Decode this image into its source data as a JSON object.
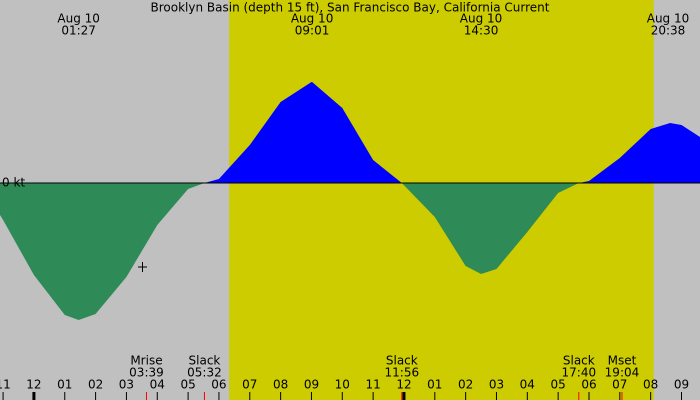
{
  "chart_data": {
    "type": "area",
    "title": "Brooklyn Basin (depth 15 ft), San Francisco Bay, California Current",
    "xlim": [
      -1.1,
      21.6
    ],
    "ylim": [
      -1.83,
      1.83
    ],
    "yticks": [
      {
        "value": 0,
        "label": "0 kt"
      }
    ],
    "xticks": [
      {
        "value": -1,
        "label": "11"
      },
      {
        "value": 0,
        "label": "12"
      },
      {
        "value": 1,
        "label": "01"
      },
      {
        "value": 2,
        "label": "02"
      },
      {
        "value": 3,
        "label": "03"
      },
      {
        "value": 4,
        "label": "04"
      },
      {
        "value": 5,
        "label": "05"
      },
      {
        "value": 6,
        "label": "06"
      },
      {
        "value": 7,
        "label": "07"
      },
      {
        "value": 8,
        "label": "08"
      },
      {
        "value": 9,
        "label": "09"
      },
      {
        "value": 10,
        "label": "10"
      },
      {
        "value": 11,
        "label": "11"
      },
      {
        "value": 12,
        "label": "12"
      },
      {
        "value": 13,
        "label": "01"
      },
      {
        "value": 14,
        "label": "02"
      },
      {
        "value": 15,
        "label": "03"
      },
      {
        "value": 16,
        "label": "04"
      },
      {
        "value": 17,
        "label": "05"
      },
      {
        "value": 18,
        "label": "06"
      },
      {
        "value": 19,
        "label": "07"
      },
      {
        "value": 20,
        "label": "08"
      },
      {
        "value": 21,
        "label": "09"
      }
    ],
    "x": [
      -1.1,
      -1,
      0,
      1,
      1.45,
      2,
      3,
      4,
      5,
      5.53,
      6,
      7,
      8,
      9,
      9.02,
      10,
      11,
      11.93,
      13,
      14,
      14.5,
      15,
      16,
      17,
      17.67,
      18,
      19,
      20,
      20.63,
      21,
      21.6
    ],
    "values": [
      -0.32,
      -0.37,
      -0.92,
      -1.32,
      -1.37,
      -1.31,
      -0.94,
      -0.42,
      -0.06,
      0,
      0.04,
      0.38,
      0.81,
      1.01,
      1.01,
      0.75,
      0.23,
      0,
      -0.34,
      -0.83,
      -0.91,
      -0.86,
      -0.49,
      -0.1,
      0,
      0.02,
      0.25,
      0.54,
      0.6,
      0.58,
      0.46
    ],
    "flood_color": "#0000ff",
    "ebb_color": "#2e8b57",
    "background_color": "#c0c0c0",
    "daylight": [
      6.33,
      20.1
    ],
    "daylight_color": "#cccc00",
    "peaks": [
      {
        "date": "Aug 10",
        "time": "01:27",
        "x": 1.45
      },
      {
        "date": "Aug 10",
        "time": "09:01",
        "x": 9.02
      },
      {
        "date": "Aug 10",
        "time": "14:30",
        "x": 14.5
      },
      {
        "date": "Aug 10",
        "time": "20:38",
        "x": 20.63
      }
    ],
    "events": [
      {
        "label": "Mrise",
        "time": "03:39",
        "x": 3.65
      },
      {
        "label": "Slack",
        "time": "05:32",
        "x": 5.53
      },
      {
        "label": "Slack",
        "time": "11:56",
        "x": 11.93
      },
      {
        "label": "Slack",
        "time": "17:40",
        "x": 17.67
      },
      {
        "label": "Mset",
        "time": "19:04",
        "x": 19.07
      }
    ]
  }
}
